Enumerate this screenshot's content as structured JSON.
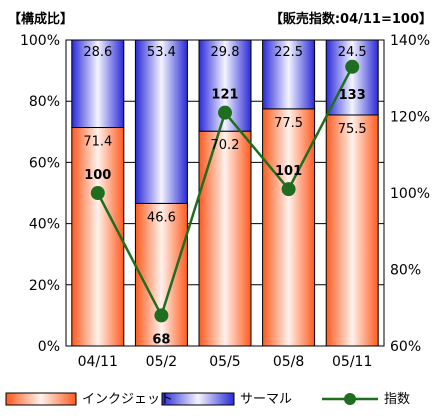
{
  "header": {
    "left_title": "【構成比】",
    "right_note": "【販売指数:04/11=100】"
  },
  "colors": {
    "inkjet_edge": "#ff5a1e",
    "inkjet_center": "#fff2ec",
    "thermal_edge": "#2a2ad8",
    "thermal_center": "#f4f4ff",
    "index_line": "#1f6e1f",
    "grid": "#000000"
  },
  "chart_data": {
    "type": "bar",
    "stacked": true,
    "categories": [
      "04/11",
      "05/2",
      "05/5",
      "05/8",
      "05/11"
    ],
    "series": [
      {
        "name": "インクジェット",
        "values": [
          71.4,
          46.6,
          70.2,
          77.5,
          75.5
        ],
        "value_labels": [
          "71.4",
          "46.6",
          "70.2",
          "77.5",
          "75.5"
        ]
      },
      {
        "name": "サーマル",
        "values": [
          28.6,
          53.4,
          29.8,
          22.5,
          24.5
        ],
        "value_labels": [
          "28.6",
          "53.4",
          "29.8",
          "22.5",
          "24.5"
        ]
      }
    ],
    "line": {
      "name": "指数",
      "values": [
        100,
        68,
        121,
        101,
        133
      ],
      "value_labels": [
        "100",
        "68",
        "121",
        "101",
        "133"
      ]
    },
    "left_axis": {
      "ylim": [
        0,
        100
      ],
      "ticks": [
        0,
        20,
        40,
        60,
        80,
        100
      ],
      "tick_labels": [
        "0%",
        "20%",
        "40%",
        "60%",
        "80%",
        "100%"
      ]
    },
    "right_axis": {
      "ylim": [
        60,
        140
      ],
      "ticks": [
        60,
        80,
        100,
        120,
        140
      ],
      "tick_labels": [
        "60%",
        "80%",
        "100%",
        "120%",
        "140%"
      ]
    },
    "grid": true,
    "legend_position": "bottom"
  }
}
